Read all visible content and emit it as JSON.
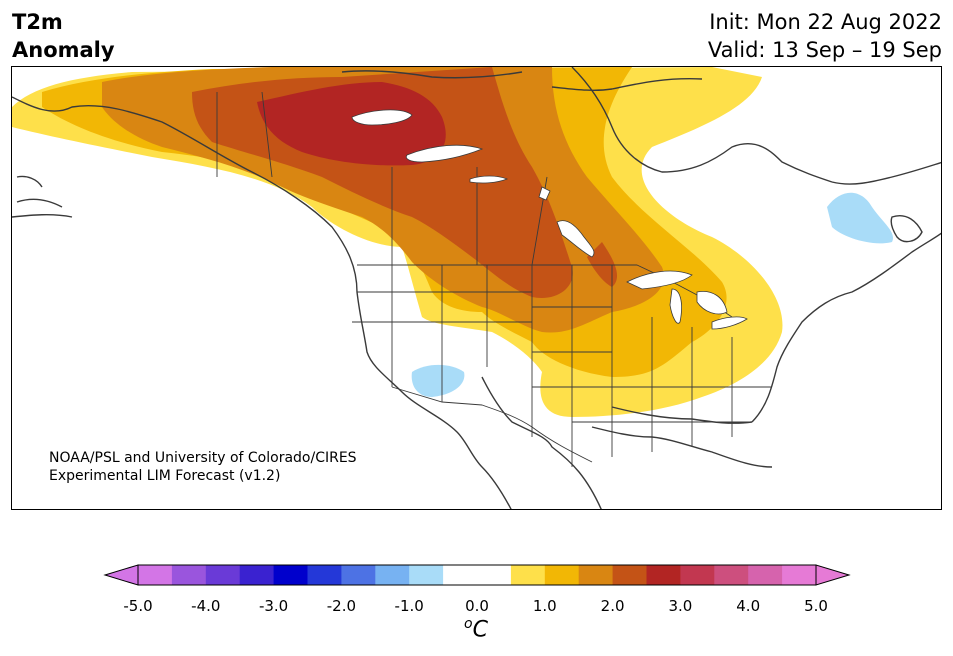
{
  "title": {
    "left_line1": "T2m",
    "left_line2": "Anomaly",
    "init": "Init: Mon 22 Aug 2022",
    "valid": "Valid: 13 Sep – 19 Sep"
  },
  "credit": {
    "line1": "NOAA/PSL and University of Colorado/CIRES",
    "line2": "Experimental LIM Forecast (v1.2)"
  },
  "legend": {
    "unit_base": "C",
    "unit_sup": "o",
    "ticks": [
      "-5.0",
      "-4.0",
      "-3.0",
      "-2.0",
      "-1.0",
      "0.0",
      "1.0",
      "2.0",
      "3.0",
      "4.0",
      "5.0"
    ],
    "bin_colors": [
      "#d375e6",
      "#9a55dd",
      "#6a3ad7",
      "#3a22d0",
      "#0000cc",
      "#2438d8",
      "#4d72e4",
      "#77b2f2",
      "#a9dcf8",
      "#ffffff",
      "#ffffff",
      "#fee04a",
      "#f2b705",
      "#d98612",
      "#c45316",
      "#b22523",
      "#c23750",
      "#cd4f7e",
      "#d663ad",
      "#e67ad6"
    ],
    "under_color": "#d375e6",
    "over_color": "#e67ad6"
  },
  "map": {
    "colors": {
      "land_lines": "#3a3a3a",
      "lakes": "#ffffff",
      "cool_anomaly": "#a9dcf8",
      "plus_0_5": "#fee04a",
      "plus_1_0": "#f2b705",
      "plus_1_5": "#d98612",
      "plus_2_0": "#c45316",
      "plus_2_5": "#b22523"
    }
  }
}
